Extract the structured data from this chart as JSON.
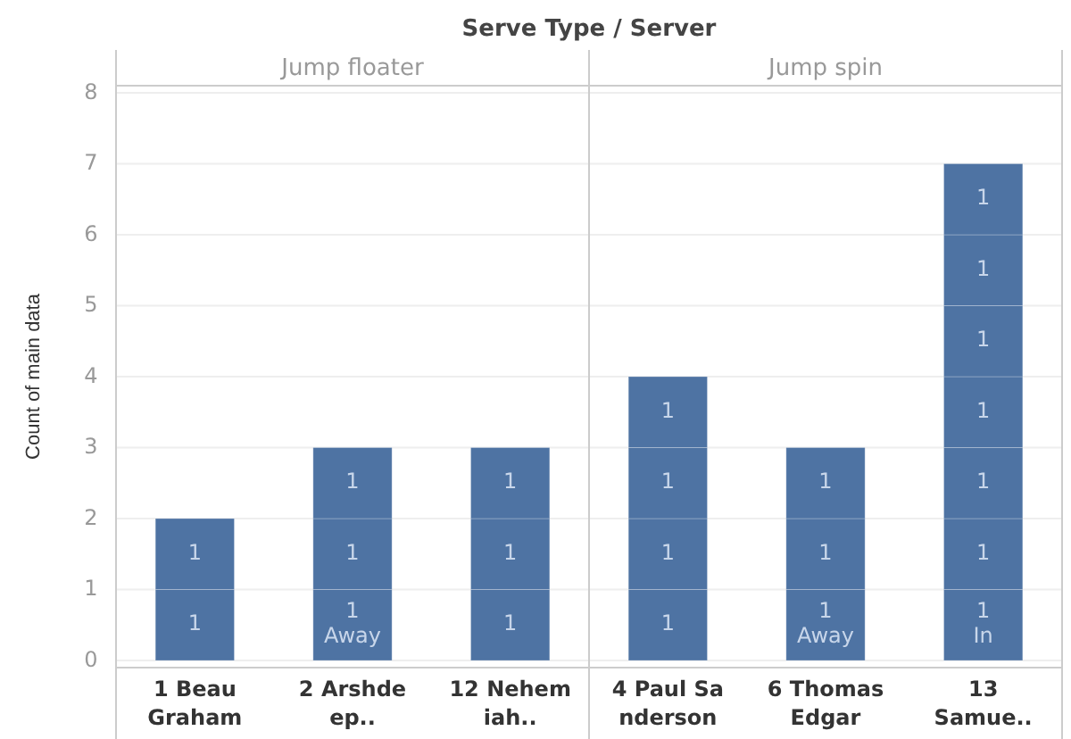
{
  "chart_data": [
    {
      "type": "bar",
      "title": "Serve Type / Server",
      "subtitle": "Jump floater",
      "ylabel": "Count of main data",
      "categories": [
        "1 Beau\nGraham",
        "2 Arshde\nep..",
        "12 Nehem\niah.."
      ],
      "stacked": true,
      "ylim": [
        0,
        8
      ],
      "yticks": [
        0,
        1,
        2,
        3,
        4,
        5,
        6,
        7,
        8
      ],
      "grid": "y",
      "data_labels": true,
      "series": [
        {
          "color": "#4e73a3",
          "values": [
            1,
            1,
            1
          ],
          "value_labels": [
            "1",
            "1\nAway",
            "1"
          ]
        },
        {
          "color": "#4e73a3",
          "values": [
            1,
            1,
            1
          ]
        },
        {
          "color": "#4e73a3",
          "values": [
            null,
            1,
            1
          ]
        }
      ]
    },
    {
      "type": "bar",
      "subtitle": "Jump spin",
      "categories": [
        "4 Paul Sa\nnderson",
        "6 Thomas\nEdgar",
        "13\nSamue.."
      ],
      "stacked": true,
      "ylim": [
        0,
        8
      ],
      "yticks": [
        0,
        1,
        2,
        3,
        4,
        5,
        6,
        7,
        8
      ],
      "grid": "y",
      "data_labels": true,
      "tick_labels": "x",
      "series": [
        {
          "color": "#4e73a3",
          "values": [
            1,
            1,
            1
          ],
          "value_labels": [
            "1",
            "1\nAway",
            "1\nIn"
          ]
        },
        {
          "color": "#4e73a3",
          "values": [
            1,
            1,
            1
          ]
        },
        {
          "color": "#4e73a3",
          "values": [
            1,
            1,
            1
          ]
        },
        {
          "color": "#4e73a3",
          "values": [
            1,
            null,
            1
          ]
        },
        {
          "color": "#4e73a3",
          "values": [
            null,
            null,
            1
          ]
        },
        {
          "color": "#4e73a3",
          "values": [
            null,
            null,
            1
          ]
        },
        {
          "color": "#4e73a3",
          "values": [
            null,
            null,
            1
          ]
        }
      ]
    }
  ]
}
